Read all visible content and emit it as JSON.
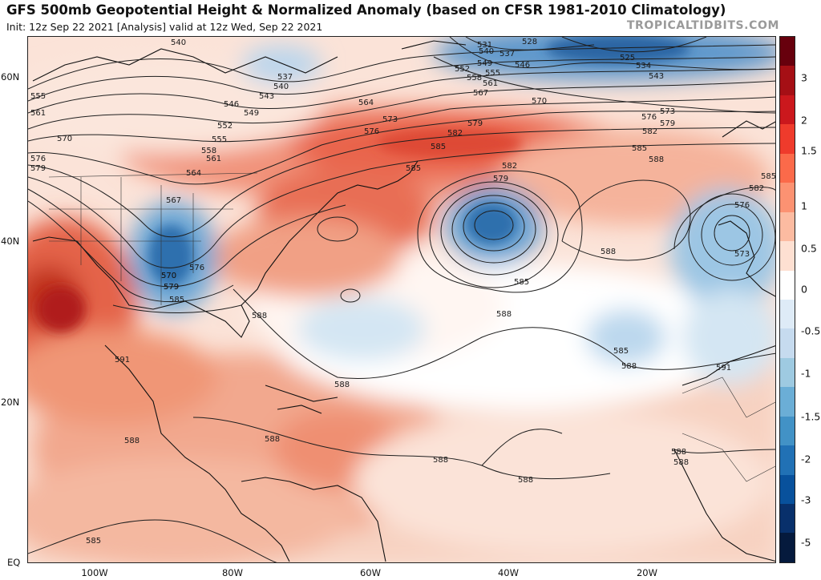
{
  "title": "GFS 500mb Geopotential Height & Normalized Anomaly (based on CFSR 1981-2010 Climatology)",
  "subtitle": "Init: 12z Sep 22 2021   [Analysis]   valid at 12z Wed, Sep 22 2021",
  "brand": "TROPICALTIDBITS.COM",
  "lat_labels": [
    "60N",
    "40N",
    "20N",
    "EQ"
  ],
  "lon_labels": [
    "100W",
    "80W",
    "60W",
    "40W",
    "20W"
  ],
  "colorbar": {
    "ticks": [
      "3",
      "2",
      "1.5",
      "1",
      "0.5",
      "0",
      "-0.5",
      "-1",
      "-1.5",
      "-2",
      "-3",
      "-5"
    ],
    "colors": [
      "#67000d",
      "#a50f15",
      "#cb181d",
      "#ef3b2c",
      "#fb6a4a",
      "#fc9272",
      "#fcbba1",
      "#fee0d2",
      "#ffffff",
      "#deebf7",
      "#c6dbef",
      "#9ecae1",
      "#6baed6",
      "#4292c6",
      "#2171b5",
      "#08519c",
      "#08306b",
      "#051a3d"
    ]
  },
  "contour_labels": [
    {
      "text": "540"
    },
    {
      "text": "537"
    },
    {
      "text": "540"
    },
    {
      "text": "543"
    },
    {
      "text": "546"
    },
    {
      "text": "549"
    },
    {
      "text": "552"
    },
    {
      "text": "555"
    },
    {
      "text": "558"
    },
    {
      "text": "561"
    },
    {
      "text": "564"
    },
    {
      "text": "567"
    },
    {
      "text": "570"
    },
    {
      "text": "576"
    },
    {
      "text": "579"
    },
    {
      "text": "555"
    },
    {
      "text": "561"
    },
    {
      "text": "570"
    },
    {
      "text": "576"
    },
    {
      "text": "579"
    },
    {
      "text": "564"
    },
    {
      "text": "573"
    },
    {
      "text": "576"
    },
    {
      "text": "531"
    },
    {
      "text": "528"
    },
    {
      "text": "540"
    },
    {
      "text": "537"
    },
    {
      "text": "549"
    },
    {
      "text": "546"
    },
    {
      "text": "552"
    },
    {
      "text": "555"
    },
    {
      "text": "558"
    },
    {
      "text": "561"
    },
    {
      "text": "567"
    },
    {
      "text": "570"
    },
    {
      "text": "525"
    },
    {
      "text": "534"
    },
    {
      "text": "543"
    },
    {
      "text": "573"
    },
    {
      "text": "576"
    },
    {
      "text": "579"
    },
    {
      "text": "582"
    },
    {
      "text": "585"
    },
    {
      "text": "588"
    },
    {
      "text": "582"
    },
    {
      "text": "579"
    },
    {
      "text": "585"
    },
    {
      "text": "582"
    },
    {
      "text": "585"
    },
    {
      "text": "579"
    },
    {
      "text": "582"
    },
    {
      "text": "585"
    },
    {
      "text": "576"
    },
    {
      "text": "573"
    },
    {
      "text": "588"
    },
    {
      "text": "585"
    },
    {
      "text": "570"
    },
    {
      "text": "579"
    },
    {
      "text": "585"
    },
    {
      "text": "588"
    },
    {
      "text": "588"
    },
    {
      "text": "585"
    },
    {
      "text": "588"
    },
    {
      "text": "591"
    },
    {
      "text": "588"
    },
    {
      "text": "591"
    },
    {
      "text": "588"
    },
    {
      "text": "588"
    },
    {
      "text": "588"
    },
    {
      "text": "588"
    },
    {
      "text": "588"
    },
    {
      "text": "588"
    },
    {
      "text": "585"
    }
  ]
}
